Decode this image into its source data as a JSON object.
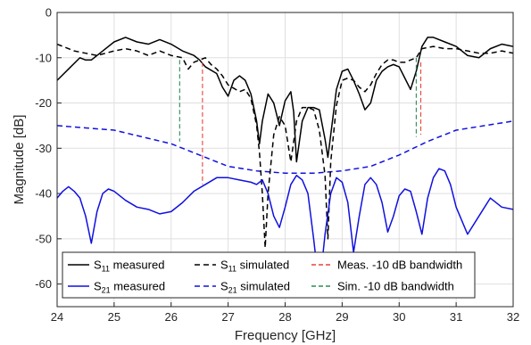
{
  "chart_data": {
    "type": "line",
    "xlabel": "Frequency [GHz]",
    "ylabel": "Magnitude [dB]",
    "xlim": [
      24,
      32
    ],
    "ylim": [
      -65,
      0
    ],
    "xticks": [
      24,
      25,
      26,
      27,
      28,
      29,
      30,
      31,
      32
    ],
    "yticks": [
      0,
      -10,
      -20,
      -30,
      -40,
      -50,
      -60
    ],
    "grid": true,
    "legend_position": "bottom-left",
    "colors": {
      "black": "#000000",
      "blue": "#1010e0",
      "red": "#e8423c",
      "green": "#2e8b57"
    },
    "legend": [
      {
        "main": "S",
        "sub": "11",
        "rest": " measured",
        "series": "s11_meas"
      },
      {
        "main": "S",
        "sub": "11",
        "rest": " simulated",
        "series": "s11_sim"
      },
      {
        "main": "Meas. -10 dB bandwidth",
        "sub": "",
        "rest": "",
        "series": "meas_bw"
      },
      {
        "main": "S",
        "sub": "21",
        "rest": " measured",
        "series": "s21_meas"
      },
      {
        "main": "S",
        "sub": "21",
        "rest": " simulated",
        "series": "s21_sim"
      },
      {
        "main": "Sim. -10 dB bandwidth",
        "sub": "",
        "rest": "",
        "series": "sim_bw"
      }
    ],
    "series": [
      {
        "name": "S11 measured",
        "key": "s11_meas",
        "color": "#000000",
        "dash": "solid",
        "x": [
          24.0,
          24.2,
          24.4,
          24.5,
          24.6,
          24.8,
          25.0,
          25.2,
          25.4,
          25.6,
          25.8,
          26.0,
          26.2,
          26.4,
          26.5,
          26.6,
          26.8,
          26.9,
          27.0,
          27.1,
          27.2,
          27.3,
          27.4,
          27.5,
          27.55,
          27.6,
          27.7,
          27.8,
          27.9,
          28.0,
          28.1,
          28.15,
          28.2,
          28.3,
          28.4,
          28.5,
          28.6,
          28.7,
          28.75,
          28.8,
          28.9,
          29.0,
          29.1,
          29.2,
          29.3,
          29.4,
          29.5,
          29.6,
          29.7,
          29.8,
          29.9,
          30.0,
          30.1,
          30.2,
          30.3,
          30.4,
          30.5,
          30.6,
          30.8,
          31.0,
          31.2,
          31.4,
          31.6,
          31.8,
          32.0
        ],
        "y": [
          -15.0,
          -12.5,
          -10.0,
          -10.5,
          -10.5,
          -8.5,
          -6.5,
          -5.5,
          -6.5,
          -7.0,
          -6.0,
          -7.0,
          -8.5,
          -9.5,
          -10.5,
          -12.0,
          -13.5,
          -16.5,
          -18.5,
          -15.0,
          -14.0,
          -15.0,
          -18.0,
          -24.0,
          -29.0,
          -24.0,
          -18.0,
          -20.0,
          -25.0,
          -19.5,
          -17.5,
          -22.0,
          -33.0,
          -24.0,
          -21.0,
          -21.0,
          -21.5,
          -28.0,
          -32.0,
          -27.0,
          -17.0,
          -13.0,
          -12.5,
          -15.0,
          -18.0,
          -21.5,
          -20.0,
          -15.0,
          -13.0,
          -12.0,
          -11.5,
          -12.0,
          -14.5,
          -17.0,
          -13.0,
          -7.5,
          -5.5,
          -5.5,
          -6.5,
          -7.5,
          -9.5,
          -10.0,
          -8.0,
          -7.0,
          -7.5
        ]
      },
      {
        "name": "S11 simulated",
        "key": "s11_sim",
        "color": "#000000",
        "dash": "dashed",
        "x": [
          24.0,
          24.3,
          24.5,
          24.7,
          25.0,
          25.2,
          25.4,
          25.6,
          25.8,
          26.0,
          26.2,
          26.3,
          26.4,
          26.5,
          26.6,
          26.7,
          26.8,
          26.9,
          27.0,
          27.2,
          27.3,
          27.4,
          27.5,
          27.55,
          27.6,
          27.65,
          27.7,
          27.8,
          27.9,
          28.0,
          28.1,
          28.2,
          28.3,
          28.4,
          28.5,
          28.6,
          28.7,
          28.75,
          28.8,
          28.9,
          29.0,
          29.1,
          29.2,
          29.3,
          29.4,
          29.5,
          29.6,
          29.7,
          29.8,
          29.9,
          30.0,
          30.1,
          30.2,
          30.3,
          30.4,
          30.6,
          30.8,
          31.0,
          31.2,
          31.4,
          31.6,
          31.8,
          32.0
        ],
        "y": [
          -7.0,
          -8.5,
          -9.0,
          -9.5,
          -8.5,
          -8.0,
          -8.5,
          -9.5,
          -8.5,
          -9.5,
          -10.0,
          -12.5,
          -11.0,
          -10.5,
          -10.0,
          -11.5,
          -12.5,
          -14.0,
          -16.0,
          -17.5,
          -17.0,
          -19.0,
          -25.0,
          -31.0,
          -40.0,
          -52.0,
          -40.0,
          -27.0,
          -23.0,
          -25.0,
          -33.0,
          -24.0,
          -21.0,
          -21.0,
          -21.5,
          -26.0,
          -36.0,
          -50.0,
          -33.0,
          -20.5,
          -15.0,
          -14.5,
          -15.0,
          -16.5,
          -17.5,
          -16.0,
          -13.5,
          -11.5,
          -10.5,
          -10.5,
          -11.0,
          -11.0,
          -10.5,
          -10.0,
          -8.0,
          -7.5,
          -8.0,
          -8.0,
          -8.5,
          -9.0,
          -9.0,
          -8.5,
          -9.0
        ]
      },
      {
        "name": "S21 measured",
        "key": "s21_meas",
        "color": "#1010e0",
        "dash": "solid",
        "x": [
          24.0,
          24.1,
          24.2,
          24.3,
          24.4,
          24.5,
          24.6,
          24.7,
          24.8,
          24.9,
          25.0,
          25.2,
          25.4,
          25.6,
          25.8,
          26.0,
          26.2,
          26.4,
          26.6,
          26.8,
          27.0,
          27.2,
          27.4,
          27.5,
          27.6,
          27.7,
          27.8,
          27.9,
          28.0,
          28.1,
          28.2,
          28.3,
          28.4,
          28.5,
          28.6,
          28.7,
          28.8,
          28.9,
          29.0,
          29.1,
          29.2,
          29.3,
          29.4,
          29.5,
          29.6,
          29.7,
          29.8,
          29.9,
          30.0,
          30.1,
          30.2,
          30.3,
          30.4,
          30.5,
          30.6,
          30.7,
          30.8,
          30.9,
          31.0,
          31.2,
          31.4,
          31.6,
          31.8,
          32.0
        ],
        "y": [
          -41.0,
          -39.5,
          -38.5,
          -39.5,
          -41.0,
          -45.0,
          -51.0,
          -44.0,
          -40.0,
          -39.0,
          -39.5,
          -41.5,
          -43.0,
          -43.5,
          -44.5,
          -44.0,
          -42.0,
          -39.5,
          -38.0,
          -36.5,
          -36.5,
          -37.0,
          -37.5,
          -38.0,
          -37.0,
          -40.0,
          -45.0,
          -47.5,
          -43.0,
          -38.0,
          -36.0,
          -37.0,
          -40.0,
          -50.0,
          -61.0,
          -49.0,
          -40.0,
          -36.5,
          -37.5,
          -42.0,
          -53.0,
          -45.0,
          -38.0,
          -36.5,
          -38.0,
          -42.0,
          -48.5,
          -45.0,
          -40.5,
          -39.0,
          -39.5,
          -44.0,
          -49.0,
          -41.0,
          -36.5,
          -34.5,
          -35.0,
          -38.0,
          -43.0,
          -49.0,
          -45.0,
          -41.0,
          -43.0,
          -43.5
        ]
      },
      {
        "name": "S21 simulated",
        "key": "s21_sim",
        "color": "#1010e0",
        "dash": "dashed",
        "x": [
          24.0,
          24.5,
          25.0,
          25.5,
          26.0,
          26.5,
          27.0,
          27.5,
          28.0,
          28.5,
          29.0,
          29.5,
          30.0,
          30.5,
          31.0,
          31.5,
          32.0
        ],
        "y": [
          -25.0,
          -25.5,
          -26.0,
          -27.5,
          -29.0,
          -31.5,
          -34.0,
          -35.0,
          -35.5,
          -35.5,
          -35.0,
          -34.0,
          -31.5,
          -28.5,
          -26.0,
          -25.0,
          -24.0
        ]
      }
    ],
    "bandwidth_markers": [
      {
        "key": "meas_bw",
        "color": "#e8423c",
        "dash": "dashed",
        "lines": [
          {
            "x": 26.55,
            "y_top": -11.0,
            "y_bottom": -38.0
          },
          {
            "x": 30.38,
            "y_top": -11.0,
            "y_bottom": -27.0
          }
        ]
      },
      {
        "key": "sim_bw",
        "color": "#2e8b57",
        "dash": "dashed",
        "lines": [
          {
            "x": 26.15,
            "y_top": -10.5,
            "y_bottom": -28.5
          },
          {
            "x": 30.3,
            "y_top": -10.0,
            "y_bottom": -27.5
          }
        ]
      }
    ]
  }
}
